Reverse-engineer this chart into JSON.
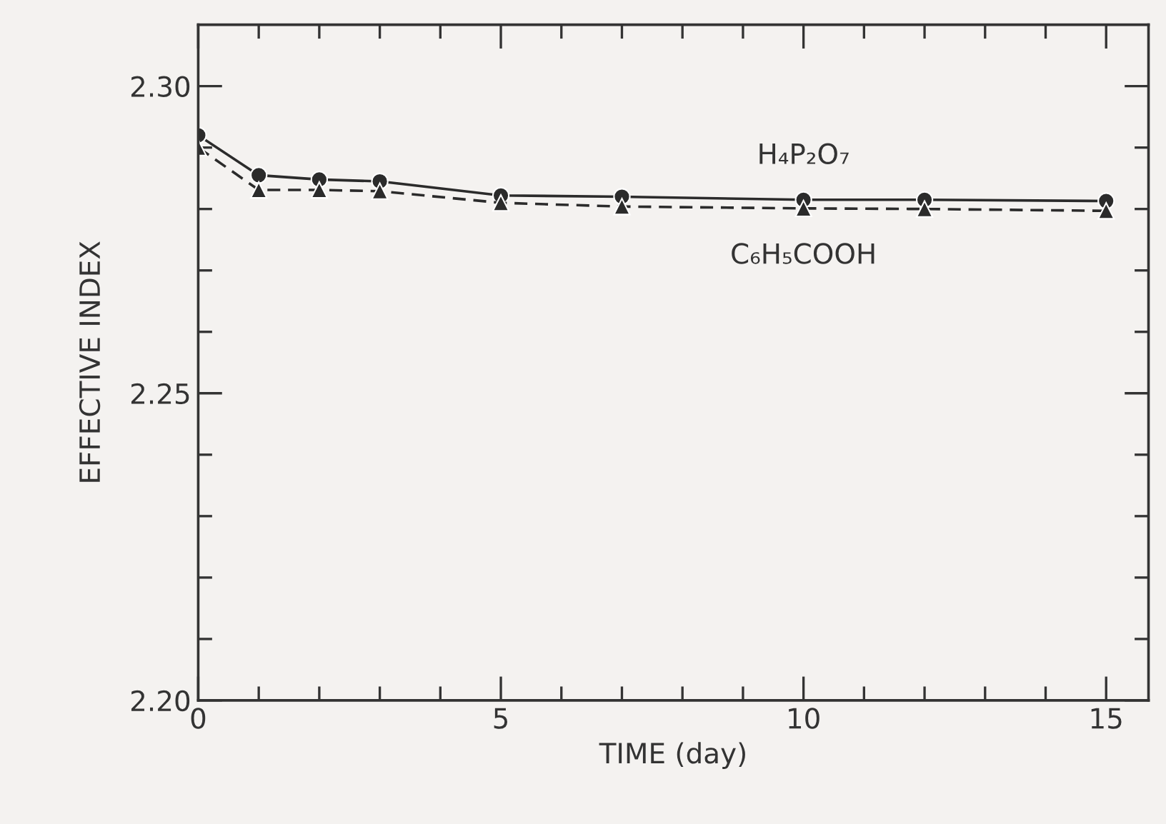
{
  "chart_data": {
    "type": "line",
    "xlabel": "TIME (day)",
    "ylabel": "EFFECTIVE INDEX",
    "x": [
      0,
      1,
      2,
      3,
      5,
      7,
      10,
      12,
      15
    ],
    "series": [
      {
        "name": "H₄P₂O₇",
        "color": "#2b2b2b",
        "marker": "circle",
        "line_style": "solid",
        "values": [
          2.292,
          2.2855,
          2.2848,
          2.2845,
          2.2822,
          2.282,
          2.2815,
          2.2815,
          2.2813
        ]
      },
      {
        "name": "C₆H₅COOH",
        "color": "#2b2b2b",
        "marker": "triangle",
        "line_style": "dashed",
        "values": [
          2.29,
          2.2831,
          2.2831,
          2.2829,
          2.281,
          2.2804,
          2.2801,
          2.28,
          2.2797
        ]
      }
    ],
    "xlim": [
      0,
      15.7
    ],
    "ylim": [
      2.2,
      2.31
    ],
    "xticks": [
      0,
      {
        "value": 1,
        "label": null
      },
      {
        "value": 2,
        "label": null
      },
      {
        "value": 3,
        "label": null
      },
      {
        "value": 4,
        "label": null
      },
      5,
      {
        "value": 6,
        "label": null
      },
      {
        "value": 7,
        "label": null
      },
      {
        "value": 8,
        "label": null
      },
      {
        "value": 9,
        "label": null
      },
      10,
      {
        "value": 11,
        "label": null
      },
      {
        "value": 12,
        "label": null
      },
      {
        "value": 13,
        "label": null
      },
      {
        "value": 14,
        "label": null
      },
      15
    ],
    "yticks": [
      {
        "value": 2.2,
        "label": "2.20"
      },
      {
        "value": 2.21,
        "label": null
      },
      {
        "value": 2.22,
        "label": null
      },
      {
        "value": 2.23,
        "label": null
      },
      {
        "value": 2.24,
        "label": null
      },
      {
        "value": 2.25,
        "label": "2.25"
      },
      {
        "value": 2.26,
        "label": null
      },
      {
        "value": 2.27,
        "label": null
      },
      {
        "value": 2.28,
        "label": null
      },
      {
        "value": 2.29,
        "label": null
      },
      {
        "value": 2.3,
        "label": "2.30"
      }
    ],
    "grid": false,
    "legend": false
  }
}
